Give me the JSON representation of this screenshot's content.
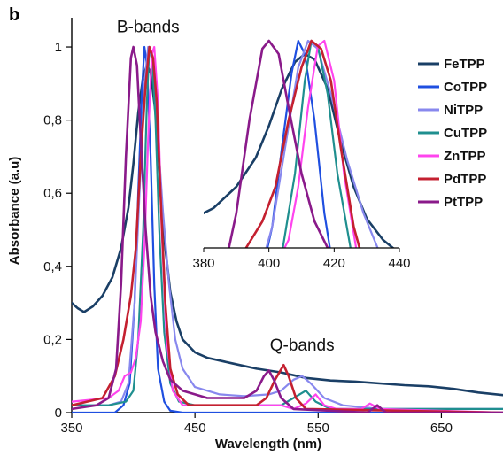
{
  "panel_label": "b",
  "chart_data": [
    {
      "type": "line",
      "xlabel": "Wavelength (nm)",
      "ylabel": "Absorbance (a.u)",
      "xlim": [
        350,
        700
      ],
      "ylim": [
        0,
        1.08
      ],
      "x_ticks": [
        350,
        450,
        550,
        650
      ],
      "x_tick_labels": [
        "350",
        "450",
        "550",
        "650"
      ],
      "y_ticks": [
        0,
        0.2,
        0.4,
        0.6,
        0.8,
        1
      ],
      "y_tick_labels": [
        "0",
        "0,2",
        "0,4",
        "0,6",
        "0,8",
        "1"
      ],
      "grid": false,
      "legend_position": "right",
      "annotations": [
        {
          "text": "B-bands",
          "x": 412,
          "y": 1.04
        },
        {
          "text": "Q-bands",
          "x": 537,
          "y": 0.17
        }
      ],
      "series": [
        {
          "name": "FeTPP",
          "color": "#1a3f66",
          "stroke_width": 2.6,
          "points": [
            [
              350,
              0.3
            ],
            [
              355,
              0.285
            ],
            [
              360,
              0.275
            ],
            [
              367,
              0.29
            ],
            [
              375,
              0.32
            ],
            [
              383,
              0.37
            ],
            [
              390,
              0.45
            ],
            [
              396,
              0.56
            ],
            [
              400,
              0.68
            ],
            [
              404,
              0.82
            ],
            [
              408,
              0.92
            ],
            [
              411,
              0.95
            ],
            [
              414,
              0.93
            ],
            [
              418,
              0.82
            ],
            [
              422,
              0.62
            ],
            [
              426,
              0.45
            ],
            [
              430,
              0.33
            ],
            [
              435,
              0.25
            ],
            [
              440,
              0.2
            ],
            [
              450,
              0.165
            ],
            [
              460,
              0.15
            ],
            [
              480,
              0.135
            ],
            [
              500,
              0.12
            ],
            [
              520,
              0.11
            ],
            [
              540,
              0.095
            ],
            [
              560,
              0.088
            ],
            [
              580,
              0.085
            ],
            [
              600,
              0.08
            ],
            [
              620,
              0.075
            ],
            [
              640,
              0.072
            ],
            [
              660,
              0.065
            ],
            [
              680,
              0.055
            ],
            [
              700,
              0.048
            ]
          ]
        },
        {
          "name": "CoTPP",
          "color": "#1f4fe0",
          "stroke_width": 2.2,
          "points": [
            [
              350,
              0.0
            ],
            [
              385,
              0.0
            ],
            [
              392,
              0.02
            ],
            [
              397,
              0.08
            ],
            [
              401,
              0.3
            ],
            [
              404,
              0.6
            ],
            [
              407,
              0.88
            ],
            [
              409,
              1.0
            ],
            [
              411,
              0.95
            ],
            [
              414,
              0.7
            ],
            [
              417,
              0.35
            ],
            [
              420,
              0.12
            ],
            [
              425,
              0.03
            ],
            [
              430,
              0.005
            ],
            [
              440,
              0.0
            ],
            [
              700,
              0.0
            ]
          ]
        },
        {
          "name": "NiTPP",
          "color": "#8888ee",
          "stroke_width": 2.2,
          "points": [
            [
              350,
              0.02
            ],
            [
              380,
              0.02
            ],
            [
              390,
              0.03
            ],
            [
              396,
              0.08
            ],
            [
              401,
              0.3
            ],
            [
              405,
              0.6
            ],
            [
              409,
              0.9
            ],
            [
              412,
              1.0
            ],
            [
              415,
              0.97
            ],
            [
              419,
              0.8
            ],
            [
              424,
              0.55
            ],
            [
              429,
              0.35
            ],
            [
              434,
              0.2
            ],
            [
              440,
              0.12
            ],
            [
              450,
              0.07
            ],
            [
              470,
              0.05
            ],
            [
              490,
              0.045
            ],
            [
              510,
              0.05
            ],
            [
              520,
              0.06
            ],
            [
              530,
              0.09
            ],
            [
              537,
              0.1
            ],
            [
              544,
              0.08
            ],
            [
              555,
              0.04
            ],
            [
              570,
              0.02
            ],
            [
              600,
              0.01
            ],
            [
              700,
              0.01
            ]
          ]
        },
        {
          "name": "CuTPP",
          "color": "#1f8f8f",
          "stroke_width": 2.2,
          "points": [
            [
              350,
              0.02
            ],
            [
              380,
              0.02
            ],
            [
              394,
              0.03
            ],
            [
              400,
              0.06
            ],
            [
              404,
              0.2
            ],
            [
              408,
              0.5
            ],
            [
              411,
              0.85
            ],
            [
              413,
              1.0
            ],
            [
              415,
              0.98
            ],
            [
              418,
              0.8
            ],
            [
              421,
              0.5
            ],
            [
              425,
              0.22
            ],
            [
              430,
              0.08
            ],
            [
              437,
              0.03
            ],
            [
              450,
              0.02
            ],
            [
              520,
              0.02
            ],
            [
              530,
              0.04
            ],
            [
              540,
              0.06
            ],
            [
              548,
              0.03
            ],
            [
              560,
              0.01
            ],
            [
              700,
              0.01
            ]
          ]
        },
        {
          "name": "ZnTPP",
          "color": "#ff44ee",
          "stroke_width": 2.2,
          "points": [
            [
              350,
              0.03
            ],
            [
              380,
              0.04
            ],
            [
              388,
              0.06
            ],
            [
              393,
              0.1
            ],
            [
              398,
              0.11
            ],
            [
              402,
              0.15
            ],
            [
              406,
              0.25
            ],
            [
              409,
              0.45
            ],
            [
              412,
              0.75
            ],
            [
              415,
              0.98
            ],
            [
              417,
              1.0
            ],
            [
              420,
              0.85
            ],
            [
              423,
              0.5
            ],
            [
              427,
              0.2
            ],
            [
              432,
              0.06
            ],
            [
              440,
              0.02
            ],
            [
              520,
              0.02
            ],
            [
              530,
              0.01
            ],
            [
              540,
              0.025
            ],
            [
              548,
              0.05
            ],
            [
              555,
              0.02
            ],
            [
              565,
              0.01
            ],
            [
              585,
              0.01
            ],
            [
              592,
              0.025
            ],
            [
              600,
              0.01
            ],
            [
              700,
              0.0
            ]
          ]
        },
        {
          "name": "PdTPP",
          "color": "#c42030",
          "stroke_width": 2.6,
          "points": [
            [
              350,
              0.02
            ],
            [
              375,
              0.04
            ],
            [
              385,
              0.1
            ],
            [
              392,
              0.2
            ],
            [
              398,
              0.32
            ],
            [
              402,
              0.45
            ],
            [
              406,
              0.7
            ],
            [
              410,
              0.9
            ],
            [
              413,
              1.0
            ],
            [
              416,
              0.97
            ],
            [
              419,
              0.85
            ],
            [
              422,
              0.6
            ],
            [
              426,
              0.3
            ],
            [
              430,
              0.12
            ],
            [
              436,
              0.05
            ],
            [
              445,
              0.02
            ],
            [
              500,
              0.02
            ],
            [
              508,
              0.04
            ],
            [
              515,
              0.09
            ],
            [
              522,
              0.13
            ],
            [
              526,
              0.1
            ],
            [
              532,
              0.04
            ],
            [
              540,
              0.01
            ],
            [
              700,
              0.0
            ]
          ]
        },
        {
          "name": "PtTPP",
          "color": "#8a1a8a",
          "stroke_width": 2.6,
          "points": [
            [
              350,
              0.01
            ],
            [
              370,
              0.02
            ],
            [
              380,
              0.04
            ],
            [
              386,
              0.12
            ],
            [
              390,
              0.35
            ],
            [
              394,
              0.7
            ],
            [
              398,
              0.97
            ],
            [
              400,
              1.0
            ],
            [
              403,
              0.95
            ],
            [
              406,
              0.75
            ],
            [
              410,
              0.5
            ],
            [
              414,
              0.32
            ],
            [
              418,
              0.22
            ],
            [
              424,
              0.14
            ],
            [
              430,
              0.09
            ],
            [
              440,
              0.06
            ],
            [
              460,
              0.04
            ],
            [
              490,
              0.04
            ],
            [
              500,
              0.06
            ],
            [
              506,
              0.1
            ],
            [
              510,
              0.115
            ],
            [
              514,
              0.09
            ],
            [
              520,
              0.04
            ],
            [
              530,
              0.01
            ],
            [
              590,
              0.0
            ],
            [
              598,
              0.02
            ],
            [
              605,
              0.0
            ],
            [
              700,
              0.0
            ]
          ]
        }
      ]
    },
    {
      "type": "line",
      "inset": true,
      "xlim": [
        380,
        440
      ],
      "ylim": [
        0.22,
        1.02
      ],
      "x_ticks": [
        380,
        400,
        420,
        440
      ],
      "x_tick_labels": [
        "380",
        "400",
        "420",
        "440"
      ],
      "grid": false,
      "series_ref": "main"
    }
  ]
}
